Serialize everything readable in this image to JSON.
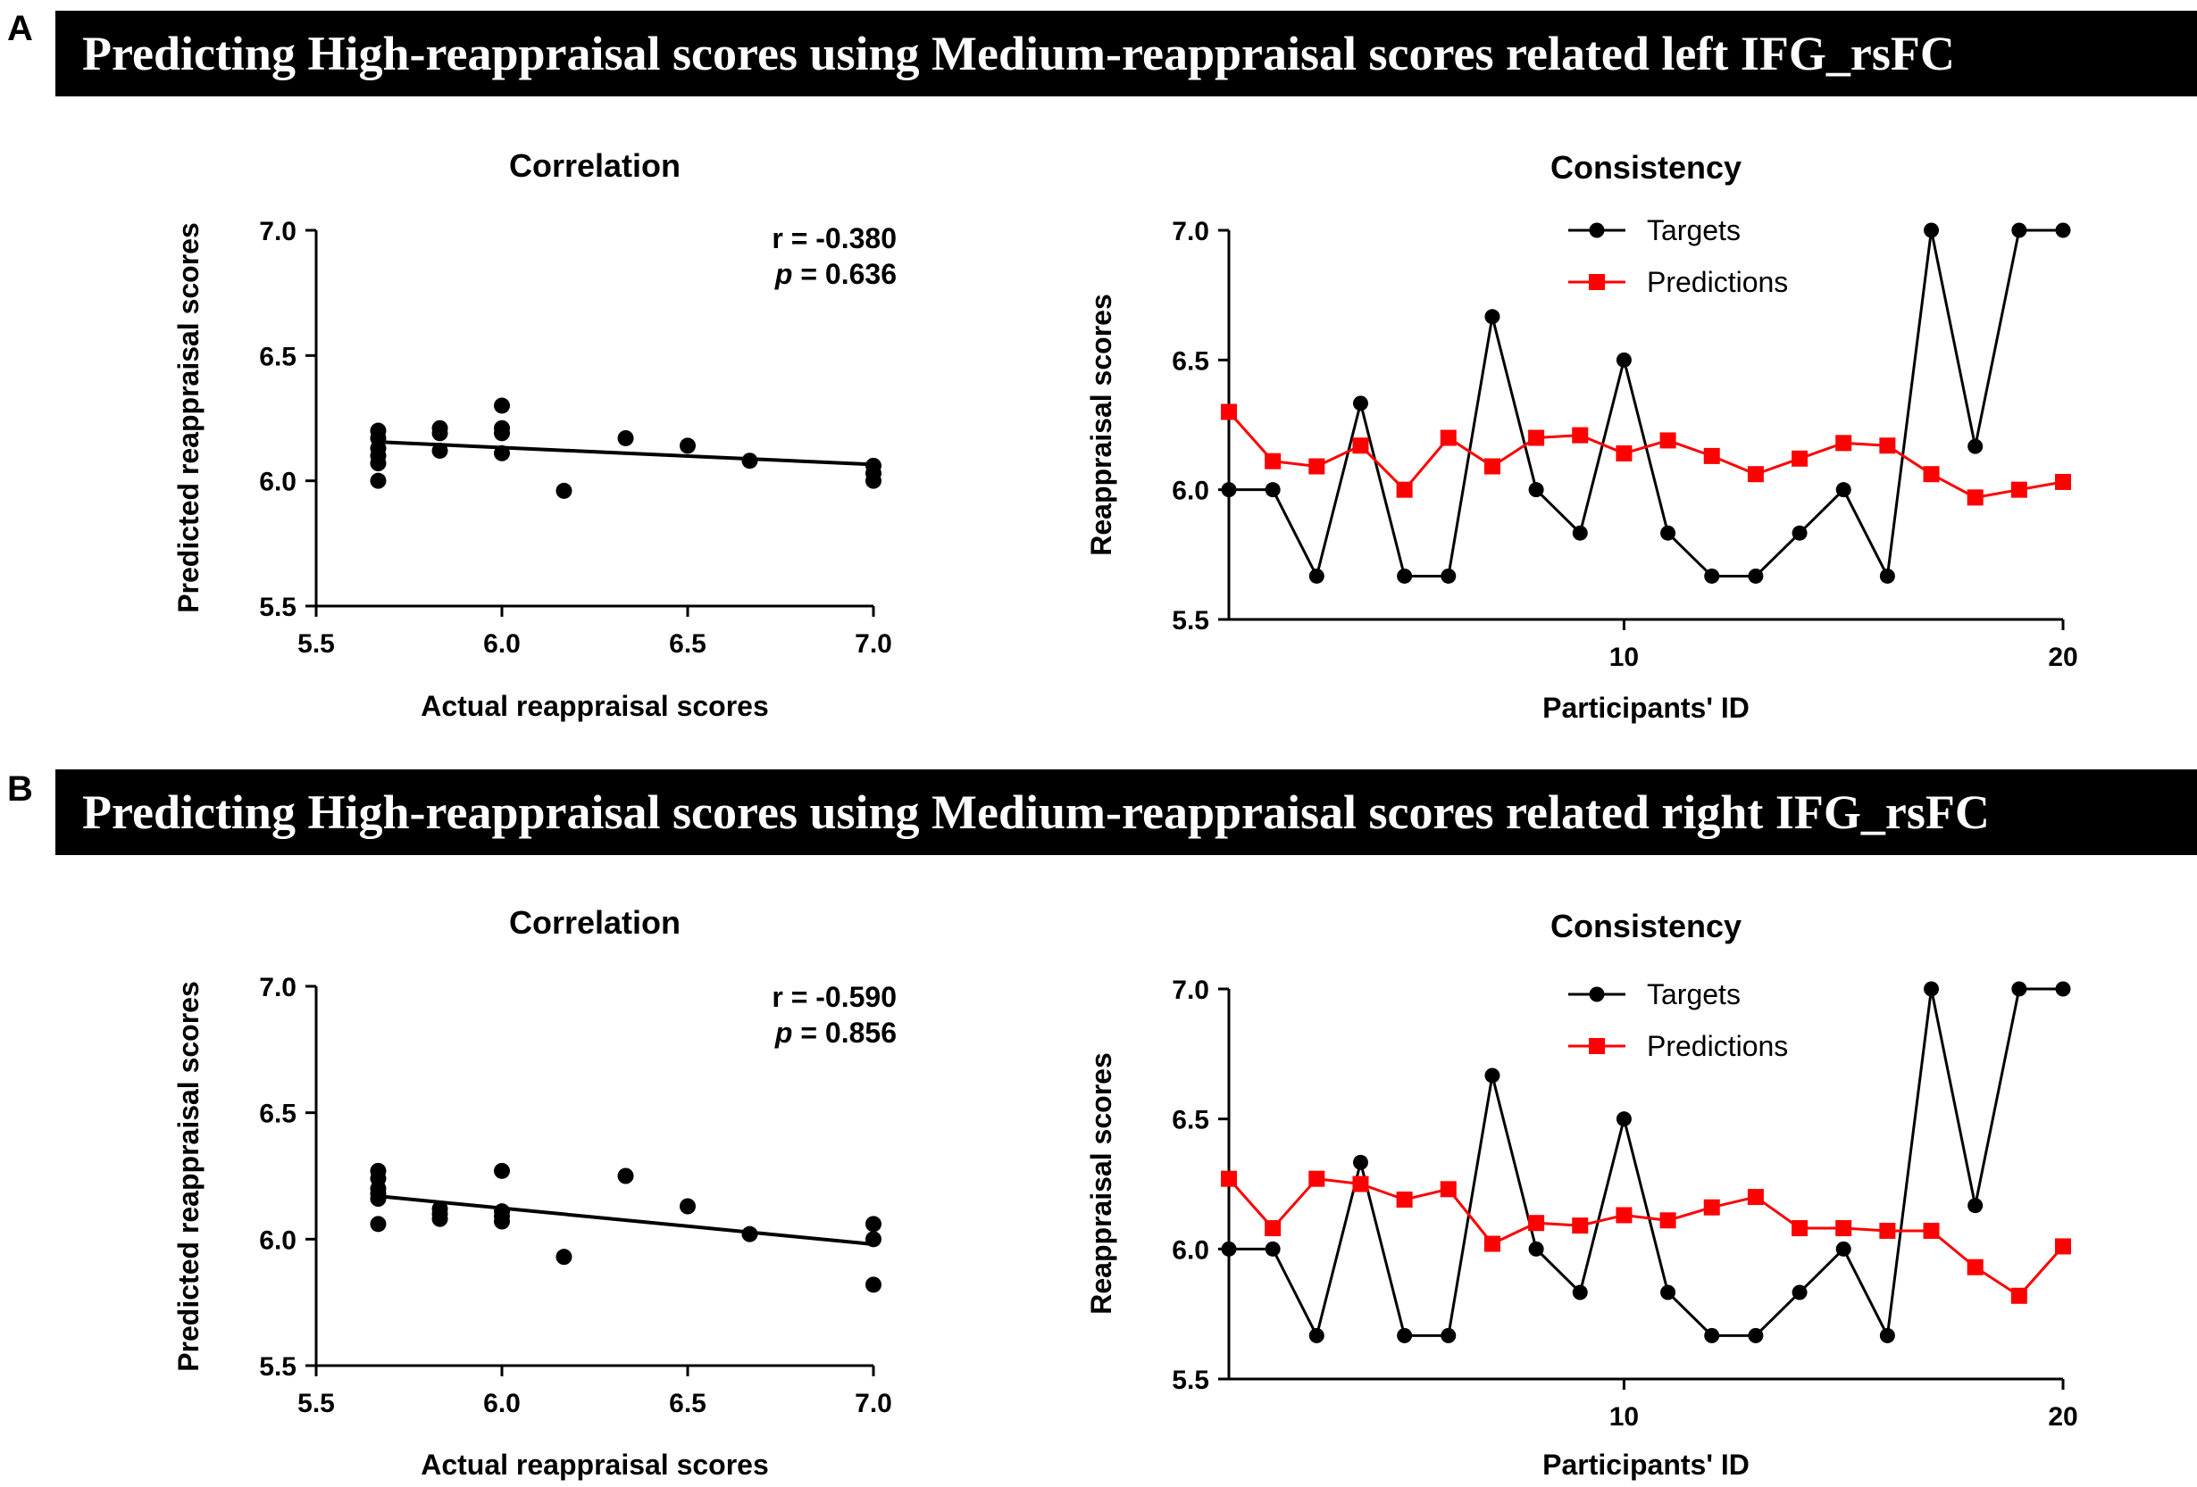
{
  "panels": [
    {
      "letter": "A",
      "banner": "Predicting High-reappraisal scores using Medium-reappraisal scores related left IFG_rsFC"
    },
    {
      "letter": "B",
      "banner": "Predicting High-reappraisal scores using Medium-reappraisal scores related right IFG_rsFC"
    }
  ],
  "colors": {
    "targets": "#000000",
    "predictions": "#ff0000",
    "axis": "#000000"
  },
  "chart_data": [
    {
      "panel": "A",
      "type": "scatter",
      "title": "Correlation",
      "xlabel": "Actual reappraisal scores",
      "ylabel": "Predicted reappraisal scores",
      "xlim": [
        5.5,
        7.0
      ],
      "ylim": [
        5.5,
        7.0
      ],
      "xticks": [
        "5.5",
        "6.0",
        "6.5",
        "7.0"
      ],
      "yticks": [
        "5.5",
        "6.0",
        "6.5",
        "7.0"
      ],
      "stat_r": "r = -0.380",
      "stat_p_label": "p",
      "stat_p_value": " = 0.636",
      "points": [
        [
          5.667,
          6.2
        ],
        [
          5.667,
          6.17
        ],
        [
          5.667,
          6.13
        ],
        [
          5.667,
          6.1
        ],
        [
          5.667,
          6.07
        ],
        [
          5.667,
          6.0
        ],
        [
          5.833,
          6.21
        ],
        [
          5.833,
          6.19
        ],
        [
          5.833,
          6.12
        ],
        [
          6.0,
          6.3
        ],
        [
          6.0,
          6.21
        ],
        [
          6.0,
          6.19
        ],
        [
          6.0,
          6.11
        ],
        [
          6.167,
          5.96
        ],
        [
          6.333,
          6.17
        ],
        [
          6.5,
          6.14
        ],
        [
          6.667,
          6.08
        ],
        [
          7.0,
          6.06
        ],
        [
          7.0,
          6.03
        ],
        [
          7.0,
          6.0
        ]
      ],
      "fit_line": [
        [
          5.667,
          6.155
        ],
        [
          7.0,
          6.065
        ]
      ]
    },
    {
      "panel": "A",
      "type": "line",
      "title": "Consistency",
      "xlabel": "Participants' ID",
      "ylabel": "Reappraisal scores",
      "xlim": [
        1,
        20
      ],
      "ylim": [
        5.5,
        7.0
      ],
      "xticks": [
        "10",
        "20"
      ],
      "yticks": [
        "5.5",
        "6.0",
        "6.5",
        "7.0"
      ],
      "x": [
        1,
        2,
        3,
        4,
        5,
        6,
        7,
        8,
        9,
        10,
        11,
        12,
        13,
        14,
        15,
        16,
        17,
        18,
        19,
        20
      ],
      "series": [
        {
          "name": "Targets",
          "marker": "circle",
          "values": [
            6.0,
            6.0,
            5.667,
            6.333,
            5.667,
            5.667,
            6.667,
            6.0,
            5.833,
            6.5,
            5.833,
            5.667,
            5.667,
            5.833,
            6.0,
            5.667,
            7.0,
            6.167,
            7.0,
            7.0
          ]
        },
        {
          "name": "Predictions",
          "marker": "square",
          "values": [
            6.3,
            6.11,
            6.09,
            6.17,
            6.0,
            6.2,
            6.09,
            6.2,
            6.21,
            6.14,
            6.19,
            6.13,
            6.06,
            6.12,
            6.18,
            6.17,
            6.06,
            5.97,
            6.0,
            6.03
          ]
        }
      ]
    },
    {
      "panel": "B",
      "type": "scatter",
      "title": "Correlation",
      "xlabel": "Actual reappraisal scores",
      "ylabel": "Predicted reappraisal scores",
      "xlim": [
        5.5,
        7.0
      ],
      "ylim": [
        5.5,
        7.0
      ],
      "xticks": [
        "5.5",
        "6.0",
        "6.5",
        "7.0"
      ],
      "yticks": [
        "5.5",
        "6.0",
        "6.5",
        "7.0"
      ],
      "stat_r": "r = -0.590",
      "stat_p_label": "p",
      "stat_p_value": " = 0.856",
      "points": [
        [
          5.667,
          6.27
        ],
        [
          5.667,
          6.24
        ],
        [
          5.667,
          6.2
        ],
        [
          5.667,
          6.18
        ],
        [
          5.667,
          6.16
        ],
        [
          5.667,
          6.06
        ],
        [
          5.833,
          6.12
        ],
        [
          5.833,
          6.1
        ],
        [
          5.833,
          6.08
        ],
        [
          6.0,
          6.27
        ],
        [
          6.0,
          6.11
        ],
        [
          6.0,
          6.09
        ],
        [
          6.0,
          6.07
        ],
        [
          6.167,
          5.93
        ],
        [
          6.333,
          6.25
        ],
        [
          6.5,
          6.13
        ],
        [
          6.667,
          6.02
        ],
        [
          7.0,
          6.06
        ],
        [
          7.0,
          6.0
        ],
        [
          7.0,
          5.82
        ]
      ],
      "fit_line": [
        [
          5.667,
          6.17
        ],
        [
          7.0,
          5.98
        ]
      ]
    },
    {
      "panel": "B",
      "type": "line",
      "title": "Consistency",
      "xlabel": "Participants' ID",
      "ylabel": "Reappraisal scores",
      "xlim": [
        1,
        20
      ],
      "ylim": [
        5.5,
        7.0
      ],
      "xticks": [
        "10",
        "20"
      ],
      "yticks": [
        "5.5",
        "6.0",
        "6.5",
        "7.0"
      ],
      "x": [
        1,
        2,
        3,
        4,
        5,
        6,
        7,
        8,
        9,
        10,
        11,
        12,
        13,
        14,
        15,
        16,
        17,
        18,
        19,
        20
      ],
      "series": [
        {
          "name": "Targets",
          "marker": "circle",
          "values": [
            6.0,
            6.0,
            5.667,
            6.333,
            5.667,
            5.667,
            6.667,
            6.0,
            5.833,
            6.5,
            5.833,
            5.667,
            5.667,
            5.833,
            6.0,
            5.667,
            7.0,
            6.167,
            7.0,
            7.0
          ]
        },
        {
          "name": "Predictions",
          "marker": "square",
          "values": [
            6.27,
            6.08,
            6.27,
            6.25,
            6.19,
            6.23,
            6.02,
            6.1,
            6.09,
            6.13,
            6.11,
            6.16,
            6.2,
            6.08,
            6.08,
            6.07,
            6.07,
            5.93,
            5.82,
            6.01
          ]
        }
      ]
    }
  ]
}
